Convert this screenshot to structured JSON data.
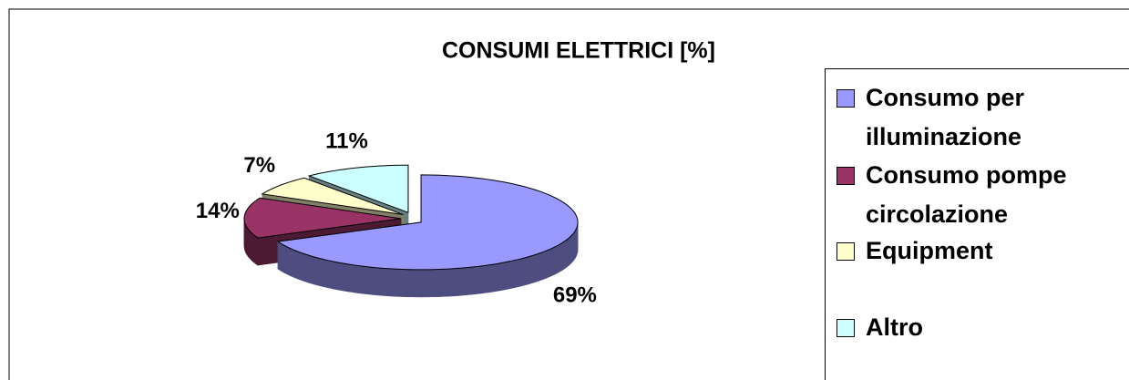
{
  "chart_data": {
    "type": "pie",
    "title": "CONSUMI ELETTRICI [%]",
    "categories": [
      "Consumo per illuminazione",
      "Consumo pompe circolazione",
      "Equipment",
      "Altro"
    ],
    "values": [
      69,
      14,
      7,
      11
    ],
    "value_labels": [
      "69%",
      "14%",
      "7%",
      "11%"
    ],
    "colors": [
      "#9999ff",
      "#993366",
      "#ffffcc",
      "#ccffff"
    ],
    "legend": "right"
  }
}
